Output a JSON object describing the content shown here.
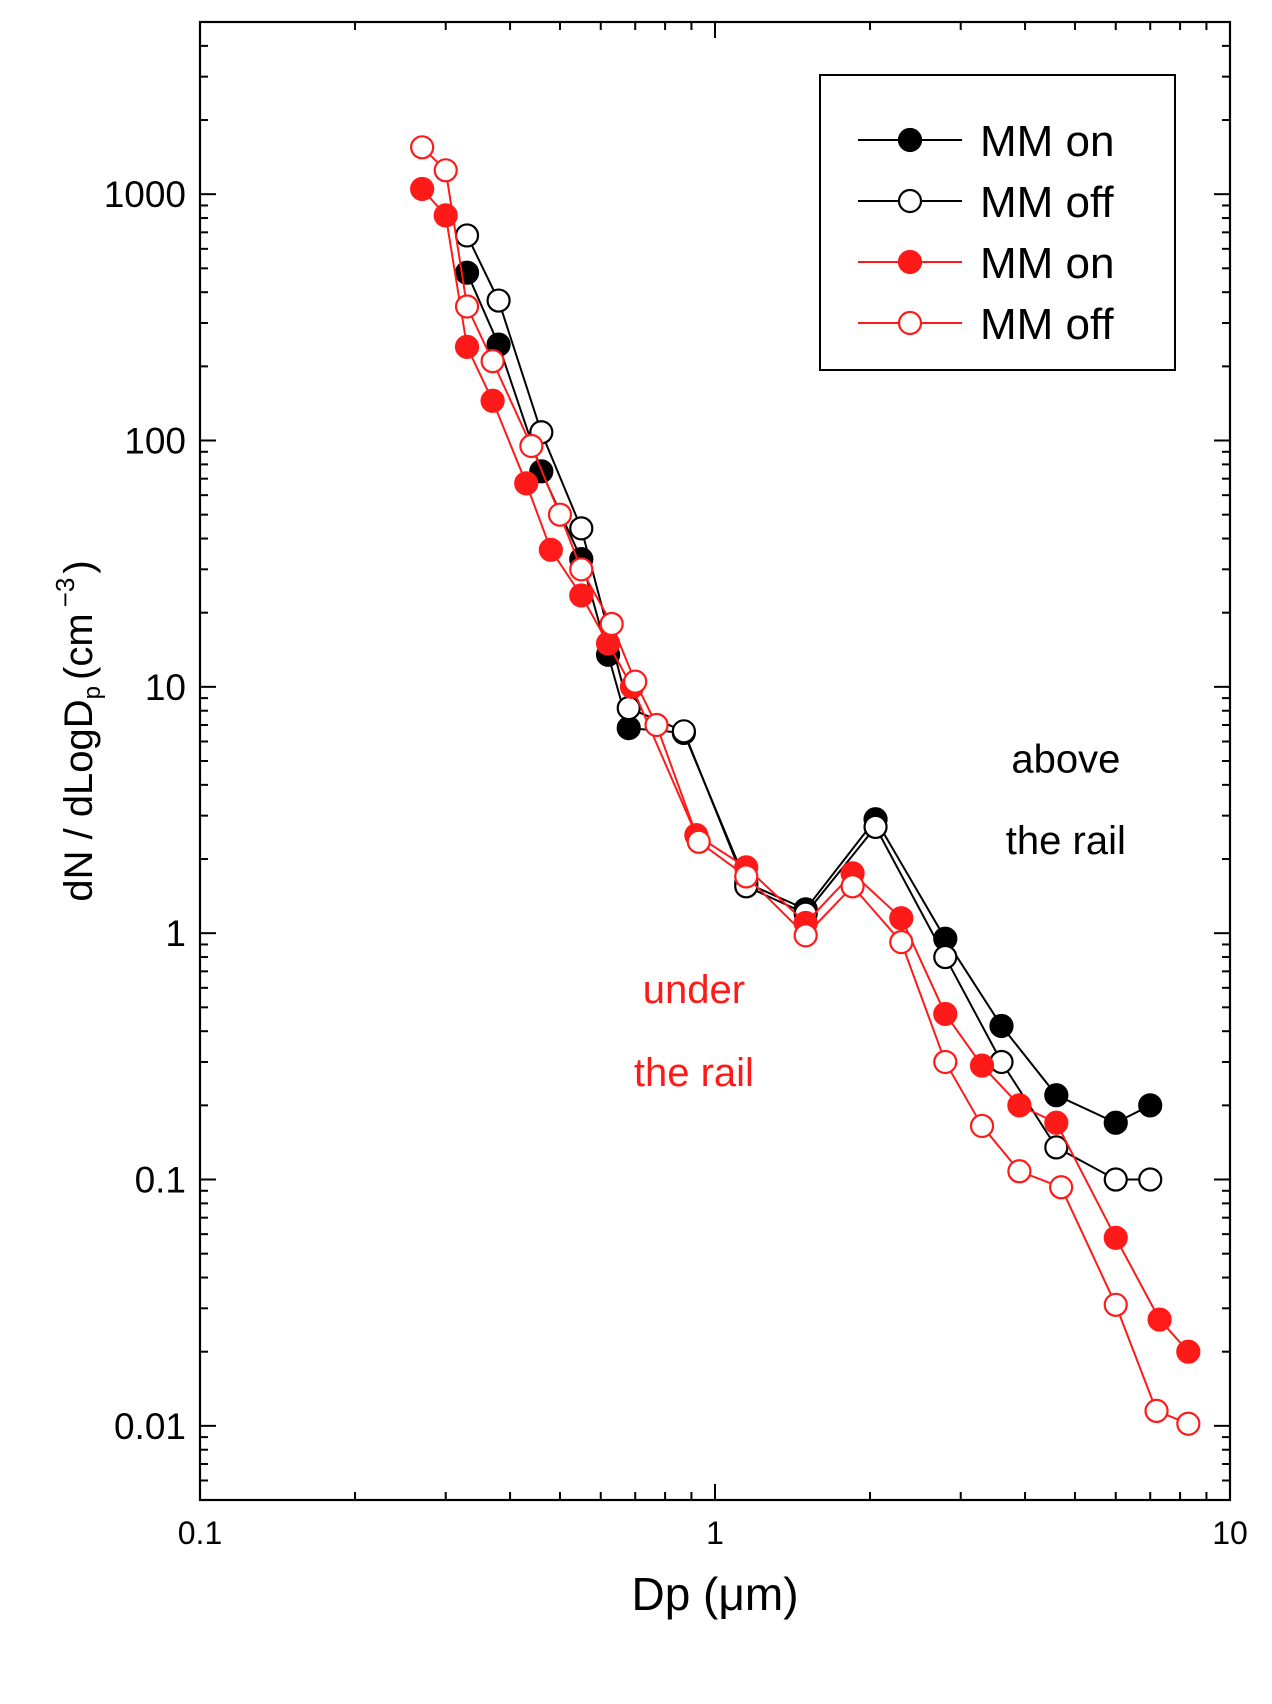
{
  "chart_data": {
    "type": "scatter",
    "title": "",
    "xlabel": "Dp (μm)",
    "ylabel_main": "dN / dLogD",
    "ylabel_sub": "p",
    "ylabel_unit": "(cm",
    "ylabel_exp": "−3",
    "ylabel_close": ")",
    "xscale": "log",
    "yscale": "log",
    "xlim": [
      0.1,
      10
    ],
    "ylim": [
      0.005,
      5000
    ],
    "x_ticks": [
      {
        "value": 0.1,
        "label": "0.1"
      },
      {
        "value": 1,
        "label": "1"
      },
      {
        "value": 10,
        "label": "10"
      }
    ],
    "y_ticks": [
      {
        "value": 0.01,
        "label": "0.01"
      },
      {
        "value": 0.1,
        "label": "0.1"
      },
      {
        "value": 1,
        "label": "1"
      },
      {
        "value": 10,
        "label": "10"
      },
      {
        "value": 100,
        "label": "100"
      },
      {
        "value": 1000,
        "label": "1000"
      }
    ],
    "legend_position": "top-right",
    "annotations": [
      {
        "text": "above",
        "x": 4.8,
        "y": 4.5,
        "color": "#000000"
      },
      {
        "text": "the rail",
        "x": 4.8,
        "y": 2.1,
        "color": "#000000"
      },
      {
        "text": "under",
        "x": 0.91,
        "y": 0.52,
        "color": "#ff1a1a"
      },
      {
        "text": "the rail",
        "x": 0.91,
        "y": 0.24,
        "color": "#ff1a1a"
      }
    ],
    "series": [
      {
        "name": "MM on",
        "group": "above the rail",
        "color": "#000000",
        "marker": "filled",
        "x": [
          0.33,
          0.38,
          0.46,
          0.55,
          0.62,
          0.68,
          0.87,
          1.15,
          1.5,
          2.05,
          2.8,
          3.6,
          4.6,
          6.0,
          7.0
        ],
        "y": [
          480,
          245,
          75,
          33,
          13.5,
          6.8,
          6.5,
          1.6,
          1.25,
          2.9,
          0.95,
          0.42,
          0.22,
          0.17,
          0.2
        ]
      },
      {
        "name": "MM off",
        "group": "above the rail",
        "color": "#000000",
        "marker": "open",
        "x": [
          0.33,
          0.38,
          0.46,
          0.55,
          0.68,
          0.87,
          1.15,
          1.5,
          2.05,
          2.8,
          3.6,
          4.6,
          6.0,
          7.0
        ],
        "y": [
          680,
          370,
          108,
          44,
          8.2,
          6.6,
          1.55,
          1.2,
          2.7,
          0.8,
          0.3,
          0.135,
          0.1,
          0.1
        ]
      },
      {
        "name": "MM on",
        "group": "under the rail",
        "color": "#ff1a1a",
        "marker": "filled",
        "x": [
          0.27,
          0.3,
          0.33,
          0.37,
          0.43,
          0.48,
          0.55,
          0.62,
          0.69,
          0.92,
          1.15,
          1.5,
          1.85,
          2.3,
          2.8,
          3.3,
          3.9,
          4.6,
          6.0,
          7.3,
          8.3
        ],
        "y": [
          1050,
          820,
          240,
          145,
          67,
          36,
          23.5,
          15,
          10,
          2.5,
          1.85,
          1.1,
          1.75,
          1.15,
          0.47,
          0.29,
          0.2,
          0.17,
          0.058,
          0.027,
          0.02
        ]
      },
      {
        "name": "MM off",
        "group": "under the rail",
        "color": "#ff1a1a",
        "marker": "open",
        "x": [
          0.27,
          0.3,
          0.33,
          0.37,
          0.44,
          0.5,
          0.55,
          0.63,
          0.7,
          0.77,
          0.93,
          1.15,
          1.5,
          1.85,
          2.3,
          2.8,
          3.3,
          3.9,
          4.7,
          6.0,
          7.2,
          8.3
        ],
        "y": [
          1550,
          1250,
          350,
          210,
          95,
          50,
          30,
          18,
          10.5,
          7,
          2.35,
          1.7,
          0.98,
          1.55,
          0.92,
          0.3,
          0.165,
          0.108,
          0.093,
          0.031,
          0.0115,
          0.0102
        ]
      }
    ]
  }
}
